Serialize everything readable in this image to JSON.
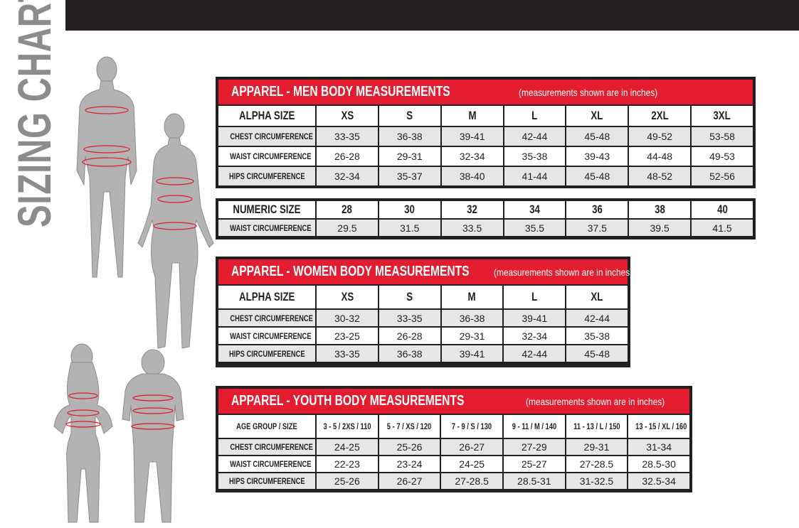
{
  "title": "SIZING CHART",
  "colors": {
    "accent": "#e31d2f",
    "frame": "#231f20",
    "title": "#8c8c8c"
  },
  "men": {
    "title": "APPAREL - MEN BODY MEASUREMENTS",
    "note": "(measurements shown are in inches)",
    "header": [
      "ALPHA SIZE",
      "XS",
      "S",
      "M",
      "L",
      "XL",
      "2XL",
      "3XL"
    ],
    "rows": [
      [
        "CHEST CIRCUMFERENCE",
        "33-35",
        "36-38",
        "39-41",
        "42-44",
        "45-48",
        "49-52",
        "53-58"
      ],
      [
        "WAIST CIRCUMFERENCE",
        "26-28",
        "29-31",
        "32-34",
        "35-38",
        "39-43",
        "44-48",
        "49-53"
      ],
      [
        "HIPS CIRCUMFERENCE",
        "32-34",
        "35-37",
        "38-40",
        "41-44",
        "45-48",
        "48-52",
        "52-56"
      ]
    ]
  },
  "numeric": {
    "header": [
      "NUMERIC SIZE",
      "28",
      "30",
      "32",
      "34",
      "36",
      "38",
      "40"
    ],
    "rows": [
      [
        "WAIST CIRCUMFERENCE",
        "29.5",
        "31.5",
        "33.5",
        "35.5",
        "37.5",
        "39.5",
        "41.5"
      ]
    ]
  },
  "women": {
    "title": "APPAREL - WOMEN BODY MEASUREMENTS",
    "note": "(measurements shown are in inches)",
    "header": [
      "ALPHA SIZE",
      "XS",
      "S",
      "M",
      "L",
      "XL"
    ],
    "rows": [
      [
        "CHEST CIRCUMFERENCE",
        "30-32",
        "33-35",
        "36-38",
        "39-41",
        "42-44"
      ],
      [
        "WAIST CIRCUMFERENCE",
        "23-25",
        "26-28",
        "29-31",
        "32-34",
        "35-38"
      ],
      [
        "HIPS CIRCUMFERENCE",
        "33-35",
        "36-38",
        "39-41",
        "42-44",
        "45-48"
      ]
    ]
  },
  "youth": {
    "title": "APPAREL - YOUTH BODY MEASUREMENTS",
    "note": "(measurements shown are in inches)",
    "header": [
      "AGE GROUP / SIZE",
      "3 - 5  /  2XS / 110",
      "5 - 7  /  XS / 120",
      "7 - 9  /  S / 130",
      "9 - 11  /  M / 140",
      "11 - 13  /  L / 150",
      "13 - 15 / XL / 160"
    ],
    "rows": [
      [
        "CHEST CIRCUMFERENCE",
        "24-25",
        "25-26",
        "26-27",
        "27-29",
        "29-31",
        "31-34"
      ],
      [
        "WAIST CIRCUMFERENCE",
        "22-23",
        "23-24",
        "24-25",
        "25-27",
        "27-28.5",
        "28.5-30"
      ],
      [
        "HIPS CIRCUMFERENCE",
        "25-26",
        "26-27",
        "27-28.5",
        "28.5-31",
        "31-32.5",
        "32.5-34"
      ]
    ]
  }
}
